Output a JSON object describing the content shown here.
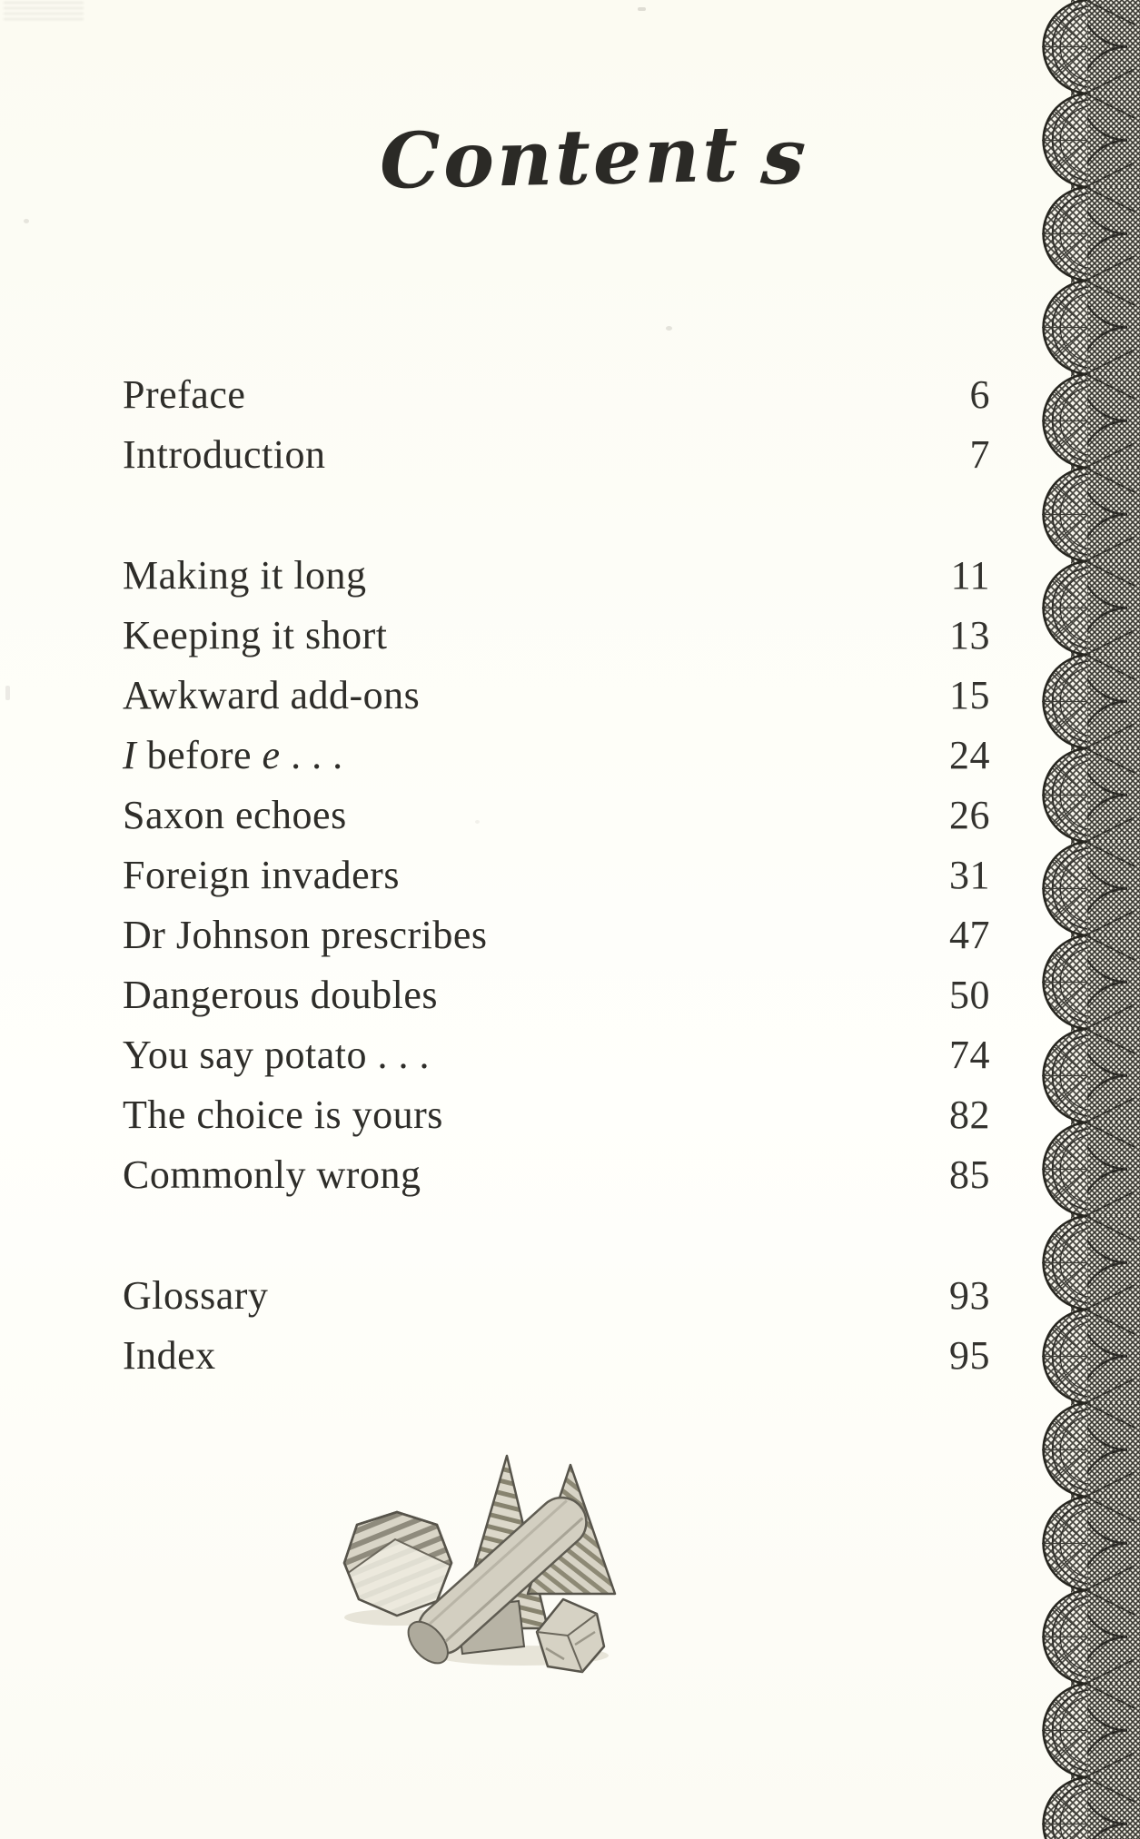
{
  "page_title": {
    "main": "Content",
    "swash": "s"
  },
  "toc": {
    "sections": [
      {
        "name": "front-matter",
        "items": [
          {
            "label": "Preface",
            "page": "6"
          },
          {
            "label": "Introduction",
            "page": "7"
          }
        ]
      },
      {
        "name": "chapters",
        "items": [
          {
            "label": "Making it long",
            "page": "11"
          },
          {
            "label": "Keeping it short",
            "page": "13"
          },
          {
            "label": "Awkward add-ons",
            "page": "15"
          },
          {
            "segments": [
              {
                "text": "I",
                "italic": true
              },
              {
                "text": " before ",
                "italic": false
              },
              {
                "text": "e",
                "italic": true
              },
              {
                "text": " . . .",
                "italic": false
              }
            ],
            "page": "24"
          },
          {
            "label": "Saxon echoes",
            "page": "26"
          },
          {
            "label": "Foreign invaders",
            "page": "31"
          },
          {
            "label": "Dr Johnson prescribes",
            "page": "47"
          },
          {
            "label": "Dangerous doubles",
            "page": "50"
          },
          {
            "label": "You say potato . . .",
            "page": "74"
          },
          {
            "label": "The choice is yours",
            "page": "82"
          },
          {
            "label": "Commonly wrong",
            "page": "85"
          }
        ]
      },
      {
        "name": "back-matter",
        "items": [
          {
            "label": "Glossary",
            "page": "93"
          },
          {
            "label": "Index",
            "page": "95"
          }
        ]
      }
    ]
  },
  "decor": {
    "ink_color": "#2e2d29",
    "paper_color": "#fcfbf3",
    "lace_color": "#3c3b36",
    "border": "lace-trim",
    "illustration": "pencil-geometric-shapes"
  }
}
